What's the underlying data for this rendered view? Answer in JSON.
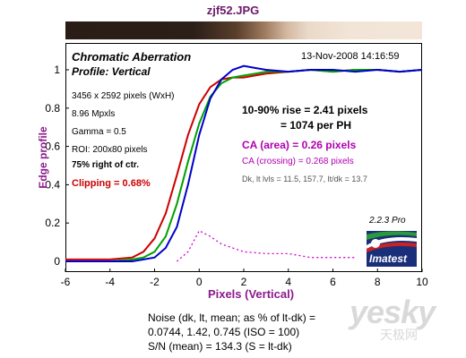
{
  "file_title": "zjf52.JPG",
  "plot_header": {
    "title": "Chromatic Aberration",
    "profile": "Profile: Vertical",
    "timestamp": "13-Nov-2008 14:16:59"
  },
  "left_info": {
    "dims": "3456 x 2592 pixels (WxH)",
    "mpxls": "8.96 Mpxls",
    "gamma": "Gamma = 0.5",
    "roi": "ROI: 200x80 pixels",
    "position": "75% right of ctr.",
    "clipping": "Clipping =   0.68%"
  },
  "right_info": {
    "rise": "10-90% rise = 2.41 pixels",
    "per_ph": "= 1074 per PH",
    "ca_area": "CA (area) = 0.26 pixels",
    "ca_crossing": "CA (crossing) = 0.268 pixels",
    "dk_line": "Dk, lt lvls = 11.5, 157.7,  lt/dk = 13.7"
  },
  "version": "2.2.3  Pro",
  "logo_text": "Imatest",
  "noise_block": {
    "line1": "Noise (dk, lt, mean; as % of lt-dk) =",
    "line2": "0.0744,   1.42,  0.745  (ISO =  100)",
    "line3": "S/N (mean) = 134.3  (S = lt-dk)"
  },
  "watermark": {
    "main": "yesky",
    "sub": "天极网"
  },
  "colors": {
    "title": "#6b1a6b",
    "label": "#8b1a8b",
    "red": "#cc0000",
    "green": "#00a000",
    "blue": "#0000cc",
    "magenta": "#d000d0",
    "ca_text": "#b000b0"
  },
  "chart_data": {
    "type": "line",
    "title": "Chromatic Aberration",
    "xlabel": "Pixels (Vertical)",
    "ylabel": "Edge profile",
    "xlim": [
      -6,
      10
    ],
    "ylim": [
      0,
      1
    ],
    "x_ticks": [
      -6,
      -4,
      -2,
      0,
      2,
      4,
      6,
      8,
      10
    ],
    "y_ticks": [
      0,
      0.2,
      0.4,
      0.6,
      0.8,
      1
    ],
    "series": [
      {
        "color": "red",
        "x": [
          -6,
          -5,
          -4,
          -3,
          -2.5,
          -2,
          -1.5,
          -1,
          -0.5,
          0,
          0.5,
          1,
          1.5,
          2,
          2.5,
          3,
          4,
          5,
          6,
          7,
          8,
          9,
          10
        ],
        "y": [
          0.01,
          0.01,
          0.01,
          0.02,
          0.05,
          0.12,
          0.25,
          0.45,
          0.66,
          0.82,
          0.91,
          0.95,
          0.96,
          0.96,
          0.97,
          0.98,
          0.99,
          1.0,
          0.99,
          1.0,
          1.0,
          0.99,
          1.0
        ]
      },
      {
        "color": "green",
        "x": [
          -6,
          -5,
          -4,
          -3,
          -2.5,
          -2,
          -1.5,
          -1,
          -0.5,
          0,
          0.5,
          1,
          1.5,
          2,
          2.5,
          3,
          4,
          5,
          6,
          7,
          8,
          9,
          10
        ],
        "y": [
          0.0,
          0.0,
          0.0,
          0.01,
          0.02,
          0.05,
          0.13,
          0.3,
          0.52,
          0.72,
          0.86,
          0.93,
          0.96,
          0.97,
          0.98,
          0.99,
          0.99,
          1.0,
          0.99,
          1.0,
          1.0,
          0.99,
          1.0
        ]
      },
      {
        "color": "blue",
        "x": [
          -6,
          -5,
          -4,
          -3,
          -2.5,
          -2,
          -1.5,
          -1,
          -0.5,
          0,
          0.5,
          1,
          1.5,
          2,
          2.5,
          3,
          4,
          5,
          6,
          7,
          8,
          9,
          10
        ],
        "y": [
          0.0,
          0.0,
          0.0,
          0.0,
          0.01,
          0.02,
          0.07,
          0.18,
          0.4,
          0.66,
          0.85,
          0.95,
          1.0,
          1.02,
          1.01,
          1.0,
          0.99,
          1.0,
          1.0,
          0.99,
          1.0,
          0.99,
          1.0
        ]
      },
      {
        "color": "magenta",
        "dashed": true,
        "x": [
          -1,
          -0.5,
          0,
          0.5,
          1,
          1.5,
          2,
          3,
          4,
          5,
          6,
          7
        ],
        "y": [
          0.0,
          0.05,
          0.16,
          0.13,
          0.09,
          0.07,
          0.05,
          0.04,
          0.04,
          0.02,
          0.02,
          0.02
        ]
      }
    ]
  }
}
